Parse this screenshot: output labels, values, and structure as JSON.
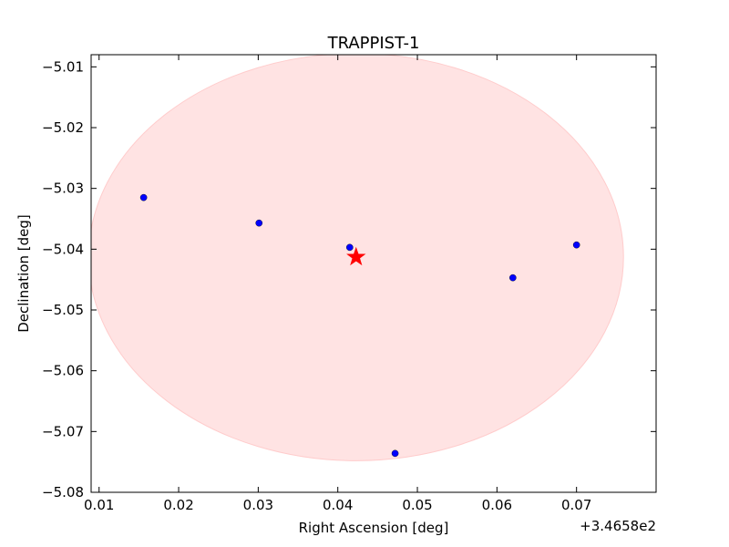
{
  "chart_data": {
    "type": "scatter",
    "title": "TRAPPIST-1",
    "xlabel": "Right Ascension [deg]",
    "ylabel": "Declination [deg]",
    "x_offset_label": "+3.4658e2",
    "xlim": [
      0.009,
      0.08
    ],
    "ylim": [
      -5.08,
      -5.008
    ],
    "xticks": [
      0.01,
      0.02,
      0.03,
      0.04,
      0.05,
      0.06,
      0.07
    ],
    "xtick_labels": [
      "0.01",
      "0.02",
      "0.03",
      "0.04",
      "0.05",
      "0.06",
      "0.07"
    ],
    "yticks": [
      -5.01,
      -5.02,
      -5.03,
      -5.04,
      -5.05,
      -5.06,
      -5.07,
      -5.08
    ],
    "ytick_labels": [
      "−5.01",
      "−5.02",
      "−5.03",
      "−5.04",
      "−5.05",
      "−5.06",
      "−5.07",
      "−5.08"
    ],
    "grid": false,
    "series": [
      {
        "marker": "circle",
        "color": "#0000ff",
        "points": [
          {
            "x": 0.0156,
            "y": -5.0315
          },
          {
            "x": 0.0301,
            "y": -5.0357
          },
          {
            "x": 0.0415,
            "y": -5.0397
          },
          {
            "x": 0.0472,
            "y": -5.0736
          },
          {
            "x": 0.062,
            "y": -5.0447
          },
          {
            "x": 0.07,
            "y": -5.0393
          }
        ]
      }
    ],
    "target": {
      "x": 0.0423,
      "y": -5.0413,
      "marker": "star",
      "color": "#ff0000"
    },
    "region": {
      "center_x": 0.0423,
      "center_y": -5.0413,
      "radius_x": 0.0336,
      "radius_y": 0.0335,
      "color": "#ffcccc"
    }
  }
}
